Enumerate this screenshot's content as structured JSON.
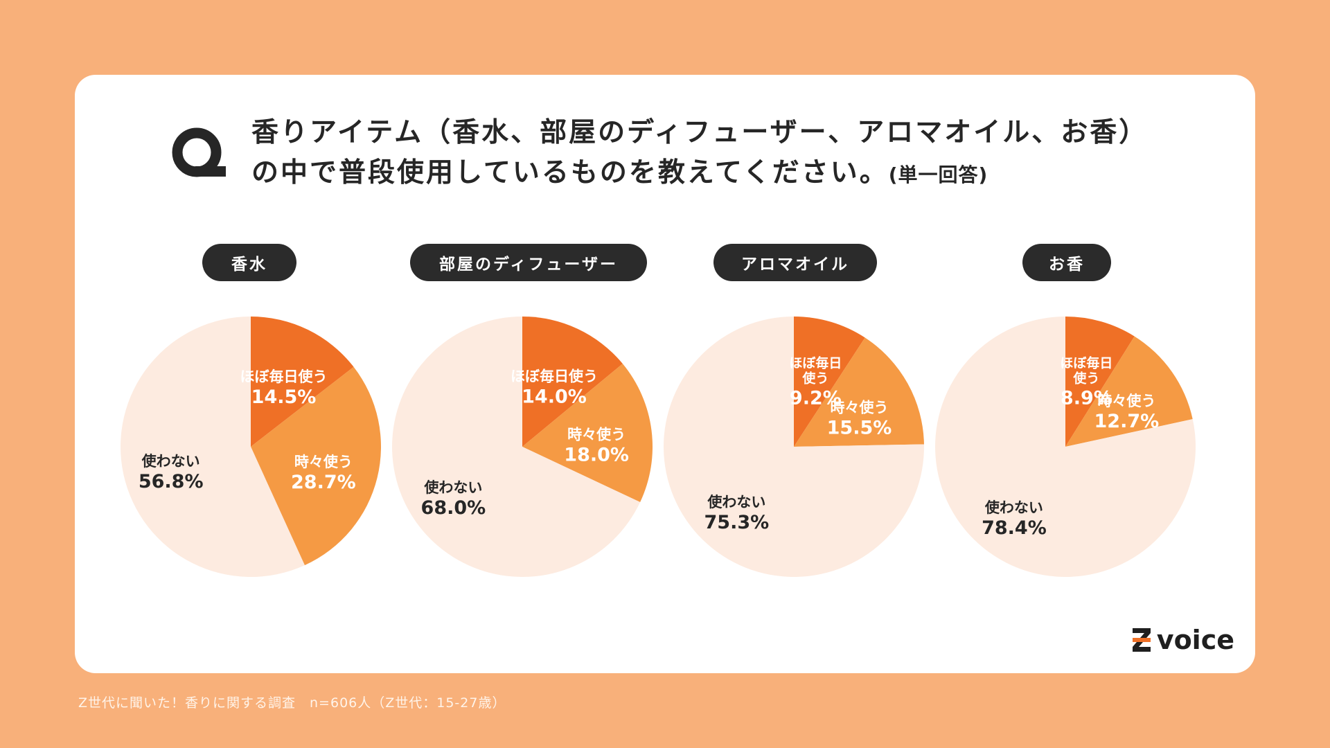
{
  "question": {
    "line1": "香りアイテム（香水、部屋のディフューザー、アロマオイル、お香）",
    "line2": "の中で普段使用しているものを教えてください。",
    "note": "(単一回答)"
  },
  "logo": {
    "text": "voice"
  },
  "footer": {
    "text": "Z世代に聞いた！香りに関する調査　n=606人（Z世代：15-27歳）"
  },
  "colors": {
    "daily": "#ef7026",
    "sometimes": "#f59a44",
    "never": "#fdebe0",
    "background": "#f8b07a"
  },
  "chart_data": [
    {
      "type": "pie",
      "title": "香水",
      "slices": [
        {
          "label": "ほぼ毎日使う",
          "value": 14.5,
          "value_label": "14.5%"
        },
        {
          "label": "時々使う",
          "value": 28.7,
          "value_label": "28.7%"
        },
        {
          "label": "使わない",
          "value": 56.8,
          "value_label": "56.8%"
        }
      ]
    },
    {
      "type": "pie",
      "title": "部屋のディフューザー",
      "slices": [
        {
          "label": "ほぼ毎日使う",
          "value": 14.0,
          "value_label": "14.0%"
        },
        {
          "label": "時々使う",
          "value": 18.0,
          "value_label": "18.0%"
        },
        {
          "label": "使わない",
          "value": 68.0,
          "value_label": "68.0%"
        }
      ]
    },
    {
      "type": "pie",
      "title": "アロマオイル",
      "slices": [
        {
          "label": "ほぼ毎日使う",
          "value": 9.2,
          "value_label": "9.2%"
        },
        {
          "label": "時々使う",
          "value": 15.5,
          "value_label": "15.5%"
        },
        {
          "label": "使わない",
          "value": 75.3,
          "value_label": "75.3%"
        }
      ]
    },
    {
      "type": "pie",
      "title": "お香",
      "slices": [
        {
          "label": "ほぼ毎日使う",
          "value": 8.9,
          "value_label": "8.9%"
        },
        {
          "label": "時々使う",
          "value": 12.7,
          "value_label": "12.7%"
        },
        {
          "label": "使わない",
          "value": 78.4,
          "value_label": "78.4%"
        }
      ]
    }
  ]
}
